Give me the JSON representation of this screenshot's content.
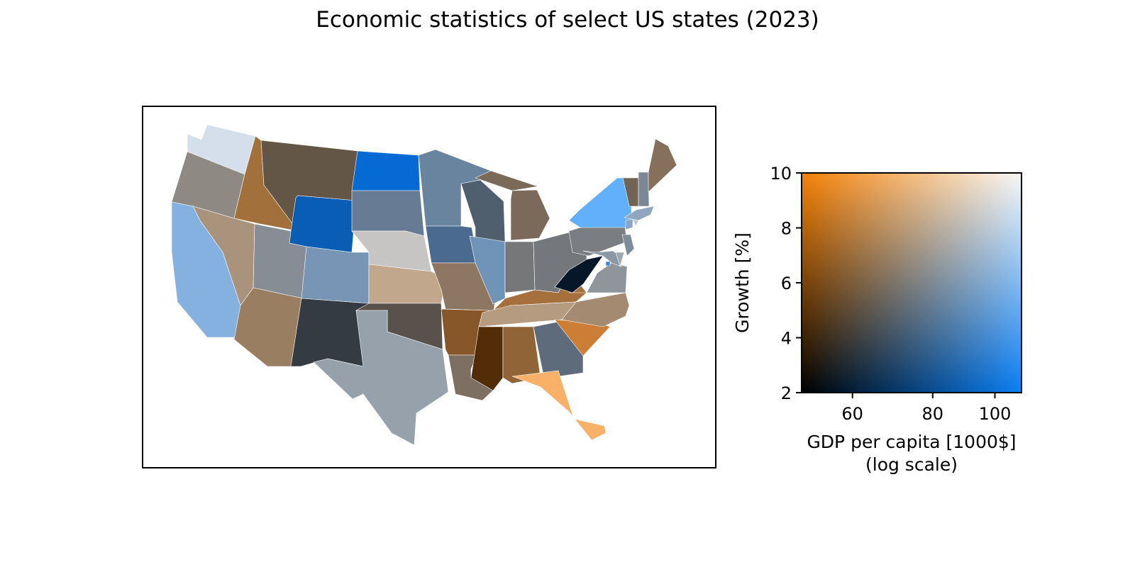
{
  "title": "Economic statistics of select US states (2023)",
  "colors": {
    "low_gdp_high_growth": "#f58208",
    "high_gdp_high_growth": "#f8f8f6",
    "low_gdp_low_growth": "#000000",
    "high_gdp_low_growth": "#0a7ff5"
  },
  "legend": {
    "xlabel": "GDP per capita [1000$]",
    "xlabel_note": "(log scale)",
    "ylabel": "Growth [%]",
    "x_scale": "log",
    "x_range": [
      50,
      110
    ],
    "y_range": [
      2,
      10
    ],
    "x_ticks": [
      {
        "value": 60,
        "label": "60"
      },
      {
        "value": 80,
        "label": "80"
      },
      {
        "value": 100,
        "label": "100"
      }
    ],
    "y_ticks": [
      {
        "value": 2,
        "label": "2"
      },
      {
        "value": 4,
        "label": "4"
      },
      {
        "value": 6,
        "label": "6"
      },
      {
        "value": 8,
        "label": "8"
      },
      {
        "value": 10,
        "label": "10"
      }
    ]
  },
  "map": {
    "legend_placement": "right",
    "states": [
      {
        "id": "WA",
        "color": "#d5dfeb"
      },
      {
        "id": "OR",
        "color": "#8e8983"
      },
      {
        "id": "CA",
        "color": "#85b1e0"
      },
      {
        "id": "ID",
        "color": "#a1703b"
      },
      {
        "id": "NV",
        "color": "#a9937d"
      },
      {
        "id": "MT",
        "color": "#635646"
      },
      {
        "id": "WY",
        "color": "#0a5db4"
      },
      {
        "id": "UT",
        "color": "#878d94"
      },
      {
        "id": "AZ",
        "color": "#9a7e61"
      },
      {
        "id": "CO",
        "color": "#7895b6"
      },
      {
        "id": "NM",
        "color": "#343b42"
      },
      {
        "id": "ND",
        "color": "#066ad4"
      },
      {
        "id": "SD",
        "color": "#677c94"
      },
      {
        "id": "NE",
        "color": "#c6c5c3"
      },
      {
        "id": "KS",
        "color": "#c1a78c"
      },
      {
        "id": "OK",
        "color": "#59514b"
      },
      {
        "id": "TX",
        "color": "#96a1ab"
      },
      {
        "id": "MN",
        "color": "#68849f"
      },
      {
        "id": "IA",
        "color": "#4a6b8f"
      },
      {
        "id": "MO",
        "color": "#8d7763"
      },
      {
        "id": "AR",
        "color": "#87572a"
      },
      {
        "id": "LA",
        "color": "#7d6f61"
      },
      {
        "id": "WI",
        "color": "#505f6e"
      },
      {
        "id": "IL",
        "color": "#7094b8"
      },
      {
        "id": "MI-UP",
        "color": "#7b6959"
      },
      {
        "id": "MI",
        "color": "#7b6959"
      },
      {
        "id": "IN",
        "color": "#767779"
      },
      {
        "id": "OH",
        "color": "#74787c"
      },
      {
        "id": "KY",
        "color": "#a6703d"
      },
      {
        "id": "TN",
        "color": "#b59b80"
      },
      {
        "id": "MS",
        "color": "#532d07"
      },
      {
        "id": "AL",
        "color": "#916438"
      },
      {
        "id": "GA",
        "color": "#5d6b7a"
      },
      {
        "id": "FL",
        "color": "#f9b16a"
      },
      {
        "id": "SC",
        "color": "#cc7e36"
      },
      {
        "id": "NC",
        "color": "#a38a71"
      },
      {
        "id": "VA",
        "color": "#8f959a"
      },
      {
        "id": "WV",
        "color": "#051728"
      },
      {
        "id": "PA",
        "color": "#7a7e83"
      },
      {
        "id": "NY",
        "color": "#62affc"
      },
      {
        "id": "MD",
        "color": "#8b97a3"
      },
      {
        "id": "DE",
        "color": "#9fa9b3"
      },
      {
        "id": "NJ",
        "color": "#7e8b99"
      },
      {
        "id": "CT",
        "color": "#8aa6c6"
      },
      {
        "id": "RI",
        "color": "#b3c9de"
      },
      {
        "id": "MA",
        "color": "#8ea6bf"
      },
      {
        "id": "VT",
        "color": "#716454"
      },
      {
        "id": "NH",
        "color": "#7c8796"
      },
      {
        "id": "ME",
        "color": "#86705b"
      },
      {
        "id": "DC",
        "color": "#3b83d9"
      }
    ]
  }
}
